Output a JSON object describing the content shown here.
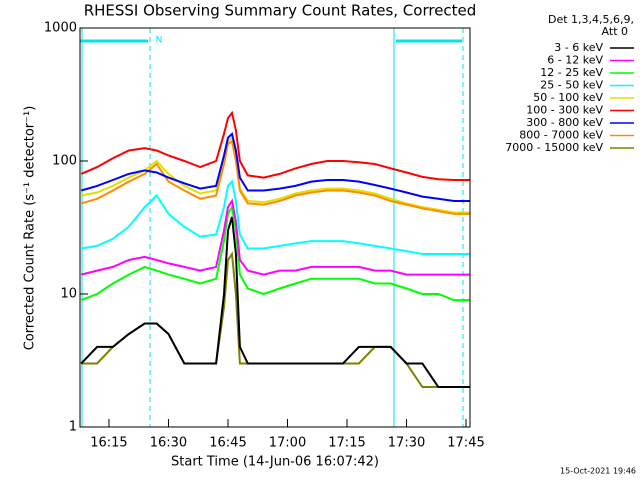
{
  "chart_data": {
    "type": "line",
    "title": "RHESSI Observing Summary Count Rates, Corrected",
    "x_label": "Start Time (14-Jun-06 16:07:42)",
    "y_label": "Corrected Count Rate (s⁻¹ detector⁻¹)",
    "legend_title": [
      "Det 1,3,4,5,6,9,",
      "Att 0"
    ],
    "annotation": "N",
    "footer": "15-Oct-2021 19:46",
    "log_y": true,
    "xlim": [
      "16:07:42",
      "17:46"
    ],
    "xticks": [
      "16:15",
      "16:30",
      "16:45",
      "17:00",
      "17:15",
      "17:30",
      "17:45"
    ],
    "ylim": [
      1,
      1000
    ],
    "yticks": [
      1,
      10,
      100,
      1000
    ],
    "x": [
      "16:08",
      "16:12",
      "16:16",
      "16:20",
      "16:24",
      "16:27",
      "16:30",
      "16:34",
      "16:38",
      "16:42",
      "16:44",
      "16:45",
      "16:46",
      "16:47",
      "16:48",
      "16:50",
      "16:54",
      "16:58",
      "17:02",
      "17:06",
      "17:10",
      "17:14",
      "17:18",
      "17:22",
      "17:26",
      "17:30",
      "17:34",
      "17:38",
      "17:42",
      "17:46"
    ],
    "series": [
      {
        "name": "3 - 6 keV",
        "color": "#000000",
        "values": [
          3,
          4,
          4,
          5,
          6,
          6,
          5,
          3,
          3,
          3,
          10,
          30,
          38,
          20,
          4,
          3,
          3,
          3,
          3,
          3,
          3,
          3,
          4,
          4,
          4,
          3,
          3,
          2,
          2,
          2
        ]
      },
      {
        "name": "6 - 12 keV",
        "color": "#ff00ff",
        "values": [
          14,
          15,
          16,
          18,
          19,
          18,
          17,
          16,
          15,
          16,
          30,
          45,
          50,
          35,
          18,
          15,
          14,
          15,
          15,
          16,
          16,
          16,
          16,
          15,
          15,
          14,
          14,
          14,
          14,
          14
        ]
      },
      {
        "name": "12 - 25 keV",
        "color": "#00ff00",
        "values": [
          9,
          10,
          12,
          14,
          16,
          15,
          14,
          13,
          12,
          13,
          25,
          40,
          45,
          30,
          14,
          11,
          10,
          11,
          12,
          13,
          13,
          13,
          13,
          12,
          12,
          11,
          10,
          10,
          9,
          9
        ]
      },
      {
        "name": "25 - 50 keV",
        "color": "#00ffff",
        "values": [
          22,
          23,
          26,
          32,
          45,
          55,
          40,
          32,
          27,
          28,
          45,
          65,
          70,
          50,
          28,
          22,
          22,
          23,
          24,
          25,
          25,
          25,
          24,
          23,
          22,
          21,
          20,
          20,
          20,
          20
        ]
      },
      {
        "name": "50 - 100 keV",
        "color": "#e0e000",
        "values": [
          55,
          58,
          65,
          75,
          85,
          100,
          80,
          65,
          57,
          60,
          100,
          140,
          150,
          105,
          62,
          50,
          49,
          52,
          57,
          60,
          62,
          62,
          60,
          57,
          52,
          48,
          45,
          43,
          41,
          41
        ]
      },
      {
        "name": "100 - 300 keV",
        "color": "#ff0000",
        "values": [
          80,
          90,
          105,
          120,
          125,
          120,
          110,
          100,
          90,
          100,
          160,
          210,
          230,
          170,
          100,
          78,
          75,
          80,
          88,
          95,
          100,
          100,
          98,
          95,
          88,
          82,
          76,
          73,
          72,
          72
        ]
      },
      {
        "name": "300 - 800 keV",
        "color": "#0000ff",
        "values": [
          60,
          65,
          72,
          80,
          85,
          82,
          75,
          68,
          62,
          65,
          110,
          150,
          160,
          120,
          75,
          60,
          60,
          62,
          65,
          70,
          72,
          72,
          70,
          66,
          62,
          58,
          54,
          52,
          50,
          50
        ]
      },
      {
        "name": "800 - 7000 keV",
        "color": "#ff8c00",
        "values": [
          48,
          52,
          60,
          70,
          80,
          95,
          70,
          60,
          52,
          55,
          95,
          135,
          140,
          100,
          60,
          48,
          47,
          50,
          55,
          58,
          60,
          60,
          58,
          55,
          50,
          47,
          44,
          42,
          40,
          40
        ]
      },
      {
        "name": "7000 - 15000 keV",
        "color": "#808000",
        "values": [
          3,
          3,
          4,
          5,
          6,
          6,
          5,
          3,
          3,
          3,
          8,
          18,
          20,
          10,
          3,
          3,
          3,
          3,
          3,
          3,
          3,
          3,
          3,
          4,
          4,
          3,
          2,
          2,
          2,
          2
        ]
      }
    ]
  }
}
